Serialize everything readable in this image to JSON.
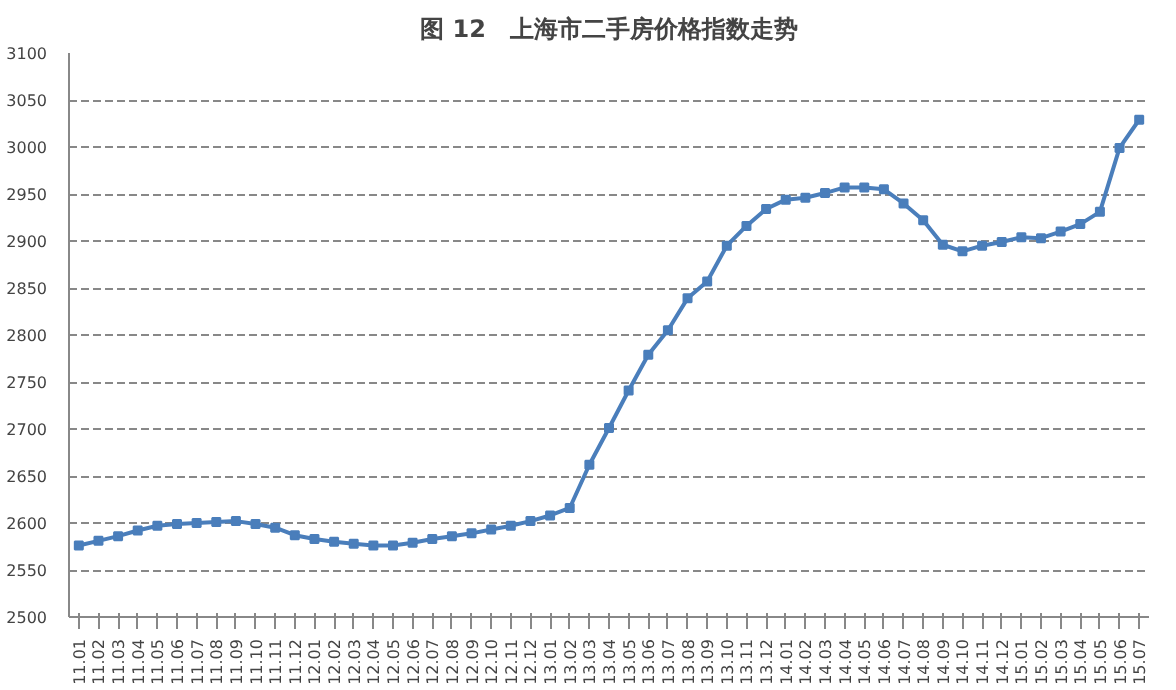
{
  "chart_data": {
    "type": "line",
    "title": "图 12　上海市二手房价格指数走势",
    "categories": [
      "11.01",
      "11.02",
      "11.03",
      "11.04",
      "11.05",
      "11.06",
      "11.07",
      "11.08",
      "11.09",
      "11.10",
      "11.11",
      "11.12",
      "12.01",
      "12.02",
      "12.03",
      "12.04",
      "12.05",
      "12.06",
      "12.07",
      "12.08",
      "12.09",
      "12.10",
      "12.11",
      "12.12",
      "13.01",
      "13.02",
      "13.03",
      "13.04",
      "13.05",
      "13.06",
      "13.07",
      "13.08",
      "13.09",
      "13.10",
      "13.11",
      "13.12",
      "14.01",
      "14.02",
      "14.03",
      "14.04",
      "14.05",
      "14.06",
      "14.07",
      "14.08",
      "14.09",
      "14.10",
      "14.11",
      "14.12",
      "15.01",
      "15.02",
      "15.03",
      "15.04",
      "15.05",
      "15.06",
      "15.07"
    ],
    "series": [
      {
        "color": "#4a7ebb",
        "values": [
          2576,
          2581,
          2586,
          2592,
          2597,
          2599,
          2600,
          2601,
          2602,
          2599,
          2595,
          2587,
          2583,
          2580,
          2578,
          2576,
          2576,
          2579,
          2583,
          2586,
          2589,
          2593,
          2597,
          2602,
          2608,
          2616,
          2662,
          2701,
          2741,
          2779,
          2805,
          2839,
          2857,
          2895,
          2916,
          2934,
          2944,
          2946,
          2951,
          2957,
          2957,
          2955,
          2940,
          2922,
          2896,
          2889,
          2895,
          2899,
          2904,
          2903,
          2910,
          2918,
          2931,
          2999,
          3029
        ]
      }
    ],
    "ylim": [
      2500,
      3100
    ],
    "yticks": [
      2500,
      2550,
      2600,
      2650,
      2700,
      2750,
      2800,
      2850,
      2900,
      2950,
      3000,
      3050,
      3100
    ],
    "grid": "y",
    "marker": "square",
    "line_style": "solid"
  }
}
